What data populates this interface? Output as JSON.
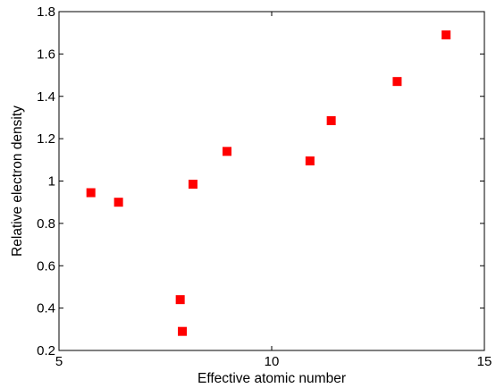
{
  "chart_data": {
    "type": "scatter",
    "xlabel": "Effective atomic number",
    "ylabel": "Relative electron density",
    "xlim": [
      5,
      15
    ],
    "ylim": [
      0.2,
      1.8
    ],
    "x_ticks": [
      5,
      10,
      15
    ],
    "y_ticks": [
      0.2,
      0.4,
      0.6,
      0.8,
      1,
      1.2,
      1.4,
      1.6,
      1.8
    ],
    "x_tick_labels": [
      "5",
      "10",
      "15"
    ],
    "y_tick_labels": [
      "0.2",
      "0.4",
      "0.6",
      "0.8",
      "1",
      "1.2",
      "1.4",
      "1.6",
      "1.8"
    ],
    "grid": false,
    "marker": "square",
    "marker_color": "#ff0000",
    "series": [
      {
        "points": [
          {
            "x": 5.75,
            "y": 0.945
          },
          {
            "x": 6.4,
            "y": 0.9
          },
          {
            "x": 7.85,
            "y": 0.44
          },
          {
            "x": 7.9,
            "y": 0.29
          },
          {
            "x": 8.15,
            "y": 0.985
          },
          {
            "x": 8.95,
            "y": 1.14
          },
          {
            "x": 10.9,
            "y": 1.095
          },
          {
            "x": 11.4,
            "y": 1.285
          },
          {
            "x": 12.95,
            "y": 1.47
          },
          {
            "x": 14.1,
            "y": 1.69
          }
        ]
      }
    ]
  }
}
